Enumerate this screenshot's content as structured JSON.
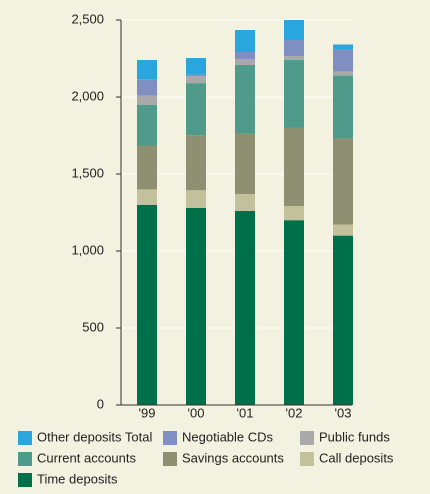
{
  "chart_data": {
    "type": "bar",
    "stacked": true,
    "categories": [
      "'99",
      "'00",
      "'01",
      "'02",
      "'03"
    ],
    "series": [
      {
        "name": "Other deposits Total",
        "color": "#2aa6de",
        "values": [
          125,
          108,
          143,
          130,
          33
        ]
      },
      {
        "name": "Negotiable CDs",
        "color": "#7f8fc2",
        "values": [
          105,
          10,
          45,
          104,
          143
        ]
      },
      {
        "name": "Public funds",
        "color": "#a9a9a9",
        "values": [
          60,
          45,
          39,
          26,
          26
        ]
      },
      {
        "name": "Current accounts",
        "color": "#4f9a8a",
        "values": [
          265,
          338,
          442,
          441,
          409
        ]
      },
      {
        "name": "Savings accounts",
        "color": "#8f8f72",
        "values": [
          285,
          357,
          396,
          507,
          558
        ]
      },
      {
        "name": "Call deposits",
        "color": "#c3c09c",
        "values": [
          100,
          115,
          110,
          92,
          72
        ]
      },
      {
        "name": "Time deposits",
        "color": "#00704a",
        "values": [
          1300,
          1280,
          1260,
          1200,
          1100
        ]
      }
    ],
    "ylim": [
      0,
      2500
    ],
    "yticks": [
      0,
      500,
      {
        "value": 1000,
        "label": "1,000"
      },
      {
        "value": 1500,
        "label": "1,500"
      },
      {
        "value": 2000,
        "label": "2,000"
      },
      {
        "value": 2500,
        "label": "2,500"
      }
    ],
    "grid": true
  }
}
